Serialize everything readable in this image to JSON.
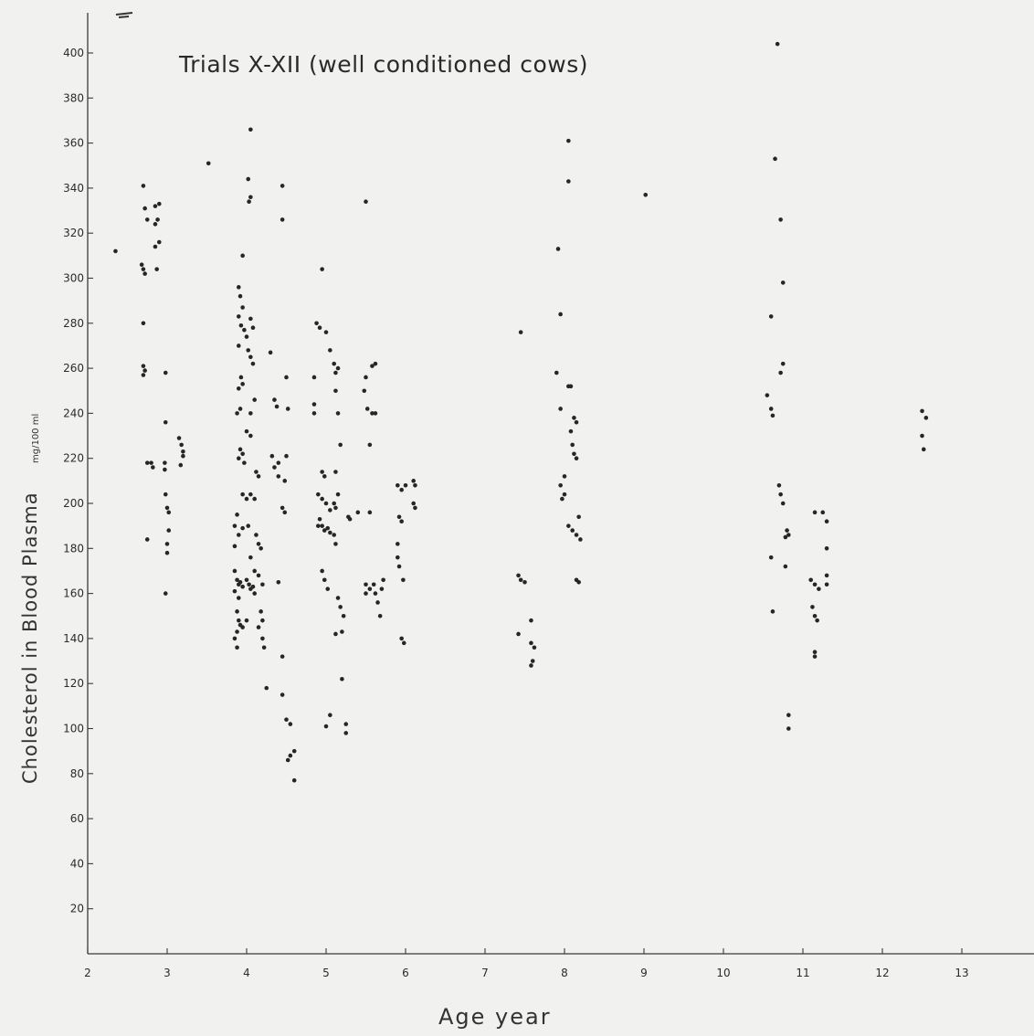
{
  "chart_data": {
    "type": "scatter",
    "title": "Trials X-XII (well conditioned cows)",
    "xlabel": "Age year",
    "ylabel": "Cholesterol in Blood Plasma",
    "ylabel_unit": "mg/100 ml",
    "xlim": [
      2,
      14
    ],
    "ylim": [
      0,
      410
    ],
    "x_ticks": [
      2,
      3,
      4,
      5,
      6,
      7,
      8,
      9,
      10,
      11,
      12,
      13
    ],
    "y_ticks": [
      20,
      40,
      60,
      80,
      100,
      120,
      140,
      160,
      180,
      200,
      220,
      240,
      260,
      280,
      300,
      320,
      340,
      360,
      380,
      400
    ],
    "grid": false,
    "points": [
      [
        2.35,
        312
      ],
      [
        2.7,
        341
      ],
      [
        2.72,
        331
      ],
      [
        2.75,
        326
      ],
      [
        2.85,
        332
      ],
      [
        2.9,
        333
      ],
      [
        2.88,
        326
      ],
      [
        2.85,
        324
      ],
      [
        2.9,
        316
      ],
      [
        2.85,
        314
      ],
      [
        2.87,
        304
      ],
      [
        2.68,
        306
      ],
      [
        2.7,
        304
      ],
      [
        2.72,
        302
      ],
      [
        2.7,
        280
      ],
      [
        2.7,
        261
      ],
      [
        2.72,
        259
      ],
      [
        2.7,
        257
      ],
      [
        2.75,
        218
      ],
      [
        2.8,
        218
      ],
      [
        2.82,
        216
      ],
      [
        2.75,
        184
      ],
      [
        2.98,
        258
      ],
      [
        2.98,
        236
      ],
      [
        2.97,
        218
      ],
      [
        2.97,
        215
      ],
      [
        2.98,
        204
      ],
      [
        3.0,
        198
      ],
      [
        3.02,
        196
      ],
      [
        3.02,
        188
      ],
      [
        3.0,
        182
      ],
      [
        3.0,
        178
      ],
      [
        2.98,
        160
      ],
      [
        3.15,
        229
      ],
      [
        3.18,
        226
      ],
      [
        3.2,
        223
      ],
      [
        3.2,
        221
      ],
      [
        3.17,
        217
      ],
      [
        3.52,
        351
      ],
      [
        3.95,
        310
      ],
      [
        3.9,
        296
      ],
      [
        3.92,
        292
      ],
      [
        3.95,
        287
      ],
      [
        3.9,
        283
      ],
      [
        3.93,
        279
      ],
      [
        3.97,
        277
      ],
      [
        4.0,
        274
      ],
      [
        3.9,
        270
      ],
      [
        3.93,
        256
      ],
      [
        3.95,
        253
      ],
      [
        3.9,
        251
      ],
      [
        3.92,
        242
      ],
      [
        3.88,
        240
      ],
      [
        3.92,
        224
      ],
      [
        3.95,
        222
      ],
      [
        3.9,
        220
      ],
      [
        3.97,
        218
      ],
      [
        3.95,
        204
      ],
      [
        4.0,
        202
      ],
      [
        3.88,
        195
      ],
      [
        3.85,
        190
      ],
      [
        3.9,
        186
      ],
      [
        3.85,
        181
      ],
      [
        3.95,
        189
      ],
      [
        3.85,
        170
      ],
      [
        3.88,
        166
      ],
      [
        3.9,
        164
      ],
      [
        3.92,
        165
      ],
      [
        3.95,
        163
      ],
      [
        4.0,
        166
      ],
      [
        4.05,
        162
      ],
      [
        4.1,
        160
      ],
      [
        3.85,
        161
      ],
      [
        3.9,
        158
      ],
      [
        3.88,
        152
      ],
      [
        3.9,
        148
      ],
      [
        3.92,
        146
      ],
      [
        3.88,
        143
      ],
      [
        3.85,
        140
      ],
      [
        3.88,
        136
      ],
      [
        3.95,
        145
      ],
      [
        4.0,
        148
      ],
      [
        4.05,
        366
      ],
      [
        4.02,
        344
      ],
      [
        4.05,
        336
      ],
      [
        4.03,
        334
      ],
      [
        4.05,
        282
      ],
      [
        4.08,
        278
      ],
      [
        4.02,
        268
      ],
      [
        4.05,
        265
      ],
      [
        4.08,
        262
      ],
      [
        4.1,
        246
      ],
      [
        4.05,
        240
      ],
      [
        4.0,
        232
      ],
      [
        4.05,
        230
      ],
      [
        4.12,
        214
      ],
      [
        4.15,
        212
      ],
      [
        4.05,
        204
      ],
      [
        4.1,
        202
      ],
      [
        4.02,
        190
      ],
      [
        4.05,
        176
      ],
      [
        4.1,
        170
      ],
      [
        4.15,
        168
      ],
      [
        4.03,
        164
      ],
      [
        4.08,
        163
      ],
      [
        4.12,
        186
      ],
      [
        4.15,
        182
      ],
      [
        4.18,
        180
      ],
      [
        4.2,
        164
      ],
      [
        4.18,
        152
      ],
      [
        4.2,
        148
      ],
      [
        4.15,
        145
      ],
      [
        4.2,
        140
      ],
      [
        4.22,
        136
      ],
      [
        4.25,
        118
      ],
      [
        4.3,
        267
      ],
      [
        4.35,
        246
      ],
      [
        4.38,
        243
      ],
      [
        4.32,
        221
      ],
      [
        4.4,
        218
      ],
      [
        4.4,
        212
      ],
      [
        4.35,
        216
      ],
      [
        4.45,
        198
      ],
      [
        4.4,
        165
      ],
      [
        4.45,
        341
      ],
      [
        4.45,
        326
      ],
      [
        4.5,
        256
      ],
      [
        4.52,
        242
      ],
      [
        4.5,
        221
      ],
      [
        4.48,
        210
      ],
      [
        4.48,
        196
      ],
      [
        4.45,
        132
      ],
      [
        4.45,
        115
      ],
      [
        4.5,
        104
      ],
      [
        4.55,
        102
      ],
      [
        4.52,
        86
      ],
      [
        4.55,
        88
      ],
      [
        4.6,
        90
      ],
      [
        4.6,
        77
      ],
      [
        4.95,
        304
      ],
      [
        4.88,
        280
      ],
      [
        4.92,
        278
      ],
      [
        5.0,
        276
      ],
      [
        5.05,
        268
      ],
      [
        4.85,
        256
      ],
      [
        4.85,
        244
      ],
      [
        4.85,
        240
      ],
      [
        4.95,
        214
      ],
      [
        4.98,
        212
      ],
      [
        4.9,
        204
      ],
      [
        4.95,
        202
      ],
      [
        5.0,
        200
      ],
      [
        5.05,
        197
      ],
      [
        4.92,
        193
      ],
      [
        4.95,
        190
      ],
      [
        4.98,
        188
      ],
      [
        5.02,
        189
      ],
      [
        5.05,
        187
      ],
      [
        4.9,
        190
      ],
      [
        4.95,
        170
      ],
      [
        4.98,
        166
      ],
      [
        5.02,
        162
      ],
      [
        5.0,
        101
      ],
      [
        5.05,
        106
      ],
      [
        5.1,
        262
      ],
      [
        5.12,
        258
      ],
      [
        5.15,
        260
      ],
      [
        5.12,
        250
      ],
      [
        5.15,
        240
      ],
      [
        5.18,
        226
      ],
      [
        5.12,
        214
      ],
      [
        5.15,
        204
      ],
      [
        5.1,
        200
      ],
      [
        5.12,
        198
      ],
      [
        5.1,
        186
      ],
      [
        5.12,
        182
      ],
      [
        5.15,
        158
      ],
      [
        5.18,
        154
      ],
      [
        5.22,
        150
      ],
      [
        5.12,
        142
      ],
      [
        5.2,
        143
      ],
      [
        5.2,
        122
      ],
      [
        5.25,
        102
      ],
      [
        5.25,
        98
      ],
      [
        5.28,
        194
      ],
      [
        5.3,
        193
      ],
      [
        5.4,
        196
      ],
      [
        5.5,
        334
      ],
      [
        5.58,
        261
      ],
      [
        5.62,
        262
      ],
      [
        5.5,
        256
      ],
      [
        5.48,
        250
      ],
      [
        5.52,
        242
      ],
      [
        5.58,
        240
      ],
      [
        5.62,
        240
      ],
      [
        5.55,
        226
      ],
      [
        5.55,
        196
      ],
      [
        5.5,
        164
      ],
      [
        5.55,
        162
      ],
      [
        5.6,
        164
      ],
      [
        5.62,
        160
      ],
      [
        5.5,
        160
      ],
      [
        5.65,
        156
      ],
      [
        5.68,
        150
      ],
      [
        5.7,
        162
      ],
      [
        5.72,
        166
      ],
      [
        5.9,
        208
      ],
      [
        5.95,
        206
      ],
      [
        6.0,
        208
      ],
      [
        5.92,
        194
      ],
      [
        5.95,
        192
      ],
      [
        5.9,
        182
      ],
      [
        5.9,
        176
      ],
      [
        5.92,
        172
      ],
      [
        5.97,
        166
      ],
      [
        5.95,
        140
      ],
      [
        5.98,
        138
      ],
      [
        6.1,
        210
      ],
      [
        6.12,
        208
      ],
      [
        6.1,
        200
      ],
      [
        6.12,
        198
      ],
      [
        7.45,
        276
      ],
      [
        7.42,
        168
      ],
      [
        7.45,
        166
      ],
      [
        7.5,
        165
      ],
      [
        7.42,
        142
      ],
      [
        7.58,
        148
      ],
      [
        7.58,
        138
      ],
      [
        7.62,
        136
      ],
      [
        7.6,
        130
      ],
      [
        7.58,
        128
      ],
      [
        7.92,
        313
      ],
      [
        7.95,
        284
      ],
      [
        7.9,
        258
      ],
      [
        7.95,
        242
      ],
      [
        8.0,
        212
      ],
      [
        7.95,
        208
      ],
      [
        8.0,
        204
      ],
      [
        7.97,
        202
      ],
      [
        8.05,
        252
      ],
      [
        8.08,
        252
      ],
      [
        8.05,
        361
      ],
      [
        8.05,
        343
      ],
      [
        8.08,
        232
      ],
      [
        8.12,
        238
      ],
      [
        8.15,
        236
      ],
      [
        8.1,
        226
      ],
      [
        8.12,
        222
      ],
      [
        8.15,
        220
      ],
      [
        8.05,
        190
      ],
      [
        8.1,
        188
      ],
      [
        8.15,
        186
      ],
      [
        8.18,
        194
      ],
      [
        8.15,
        166
      ],
      [
        8.18,
        165
      ],
      [
        8.2,
        184
      ],
      [
        9.02,
        337
      ],
      [
        10.68,
        404
      ],
      [
        10.65,
        353
      ],
      [
        10.72,
        326
      ],
      [
        10.75,
        298
      ],
      [
        10.6,
        283
      ],
      [
        10.75,
        262
      ],
      [
        10.72,
        258
      ],
      [
        10.55,
        248
      ],
      [
        10.6,
        242
      ],
      [
        10.62,
        239
      ],
      [
        10.72,
        204
      ],
      [
        10.75,
        200
      ],
      [
        10.7,
        208
      ],
      [
        10.8,
        188
      ],
      [
        10.78,
        185
      ],
      [
        10.82,
        186
      ],
      [
        10.6,
        176
      ],
      [
        10.78,
        172
      ],
      [
        10.62,
        152
      ],
      [
        10.82,
        106
      ],
      [
        10.82,
        100
      ],
      [
        11.15,
        196
      ],
      [
        11.1,
        166
      ],
      [
        11.15,
        164
      ],
      [
        11.2,
        162
      ],
      [
        11.12,
        154
      ],
      [
        11.15,
        150
      ],
      [
        11.18,
        148
      ],
      [
        11.15,
        134
      ],
      [
        11.15,
        132
      ],
      [
        11.25,
        196
      ],
      [
        11.3,
        192
      ],
      [
        11.3,
        180
      ],
      [
        11.3,
        168
      ],
      [
        11.3,
        164
      ],
      [
        12.5,
        241
      ],
      [
        12.55,
        238
      ],
      [
        12.5,
        230
      ],
      [
        12.52,
        224
      ]
    ]
  }
}
